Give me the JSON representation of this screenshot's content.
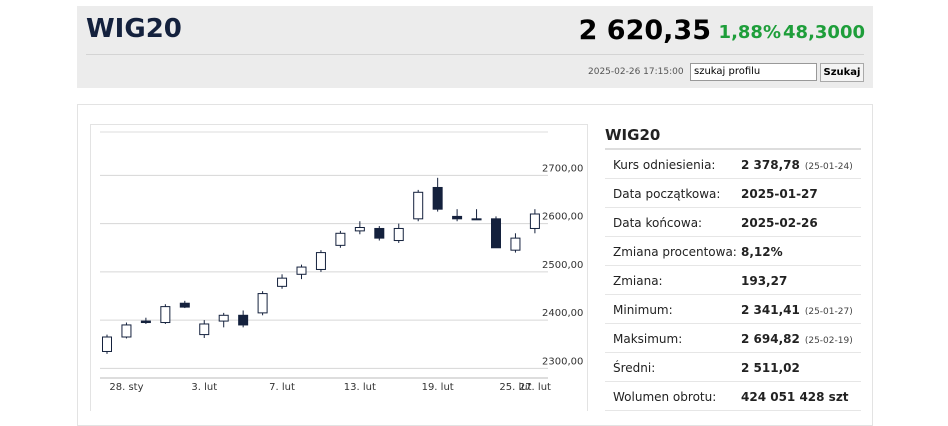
{
  "header": {
    "title": "WIG20",
    "value": "2 620,35",
    "change_pct": "1,88%",
    "change": "48,3000",
    "timestamp": "2025-02-26 17:15:00",
    "search_placeholder": "szukaj profilu",
    "search_button": "Szukaj"
  },
  "chart_data": {
    "type": "candlestick",
    "categories": [
      null,
      "28. sty",
      null,
      null,
      null,
      "3. lut",
      null,
      null,
      null,
      "7. lut",
      null,
      null,
      null,
      "13. lut",
      null,
      null,
      null,
      "19. lut",
      null,
      null,
      null,
      "25. lut",
      "27. lut"
    ],
    "open": [
      2335,
      2365,
      2398,
      2395,
      2435,
      2370,
      2398,
      2410,
      2415,
      2470,
      2495,
      2505,
      2555,
      2585,
      2590,
      2565,
      2610,
      2675,
      2615,
      2610,
      2610,
      2545,
      2590
    ],
    "high": [
      2370,
      2395,
      2405,
      2433,
      2440,
      2400,
      2415,
      2420,
      2460,
      2495,
      2515,
      2545,
      2585,
      2605,
      2595,
      2600,
      2670,
      2695,
      2630,
      2630,
      2615,
      2580,
      2630
    ],
    "low": [
      2330,
      2362,
      2392,
      2392,
      2425,
      2363,
      2385,
      2385,
      2410,
      2465,
      2485,
      2500,
      2550,
      2578,
      2565,
      2560,
      2605,
      2625,
      2605,
      2610,
      2550,
      2540,
      2580
    ],
    "close": [
      2365,
      2390,
      2395,
      2428,
      2427,
      2392,
      2410,
      2390,
      2455,
      2487,
      2510,
      2540,
      2580,
      2592,
      2570,
      2590,
      2665,
      2630,
      2610,
      2610,
      2550,
      2570,
      2620
    ],
    "colors": {
      "up": "#ffffff",
      "down": "#14213d",
      "outline": "#14213d"
    },
    "ylim": [
      2280,
      2790
    ],
    "yticks": [
      {
        "value": 2300,
        "label": "2300,00"
      },
      {
        "value": 2400,
        "label": "2400,00"
      },
      {
        "value": 2500,
        "label": "2500,00"
      },
      {
        "value": 2600,
        "label": "2600,00"
      },
      {
        "value": 2700,
        "label": "2700,00"
      }
    ],
    "grid": true
  },
  "panel": {
    "title": "WIG20",
    "rows": [
      {
        "label": "Kurs odniesienia:",
        "value": "2 378,78",
        "note": "(25-01-24)"
      },
      {
        "label": "Data początkowa:",
        "value": "2025-01-27"
      },
      {
        "label": "Data końcowa:",
        "value": "2025-02-26"
      },
      {
        "label": "Zmiana procentowa:",
        "value": "8,12%"
      },
      {
        "label": "Zmiana:",
        "value": "193,27"
      },
      {
        "label": "Minimum:",
        "value": "2 341,41",
        "note": "(25-01-27)"
      },
      {
        "label": "Maksimum:",
        "value": "2 694,82",
        "note": "(25-02-19)"
      },
      {
        "label": "Średni:",
        "value": "2 511,02"
      },
      {
        "label": "Wolumen obrotu:",
        "value": "424 051 428 szt"
      }
    ]
  }
}
